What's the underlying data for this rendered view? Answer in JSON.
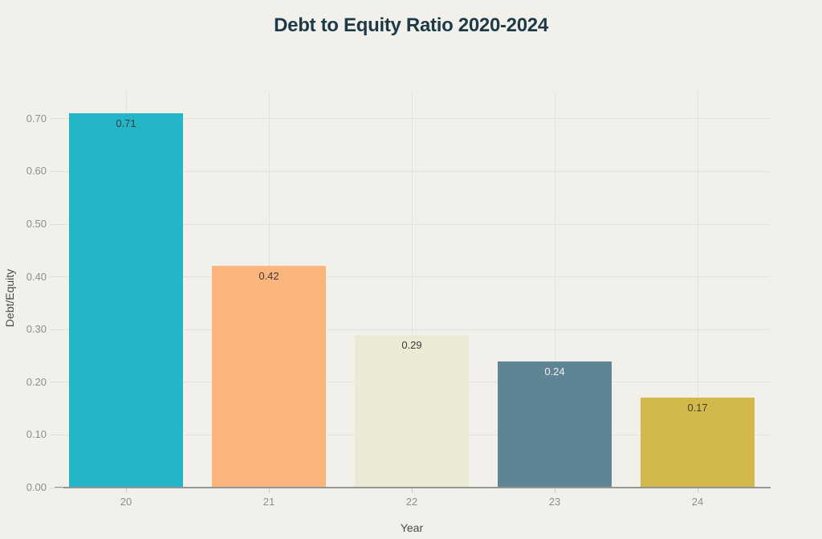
{
  "page": {
    "background": "#f1f0ea"
  },
  "chart_data": {
    "type": "bar",
    "title": "Debt to Equity Ratio 2020-2024",
    "xlabel": "Year",
    "ylabel": "Debt/Equity",
    "categories": [
      "20",
      "21",
      "22",
      "23",
      "24"
    ],
    "values": [
      0.71,
      0.42,
      0.29,
      0.24,
      0.17
    ],
    "value_labels": [
      "0.71",
      "0.42",
      "0.29",
      "0.24",
      "0.17"
    ],
    "bar_colors": [
      "#23b5c8",
      "#fcb57c",
      "#ebead5",
      "#5e8593",
      "#d2b94a"
    ],
    "value_label_colors": [
      "#3c3c3a",
      "#3c3c3a",
      "#3c3c3a",
      "#f2f1eb",
      "#3c3c3a"
    ],
    "ylim": [
      0,
      0.75
    ],
    "yticks": [
      0.0,
      0.1,
      0.2,
      0.3,
      0.4,
      0.5,
      0.6,
      0.7
    ],
    "ytick_labels": [
      "0.00",
      "0.10",
      "0.20",
      "0.30",
      "0.40",
      "0.50",
      "0.60",
      "0.70"
    ],
    "grid": true,
    "legend": "none",
    "colors": {
      "title_text": "#1d3b47",
      "tick_text": "#8f8e88",
      "axis_title_text": "#45454200",
      "axis_label_text": "#4a4a47",
      "gridline": "#e4e3db",
      "tick_dash": "#dddcd4",
      "axis_line": "#96958f",
      "xtick_mark": "#c9c8c1"
    }
  }
}
